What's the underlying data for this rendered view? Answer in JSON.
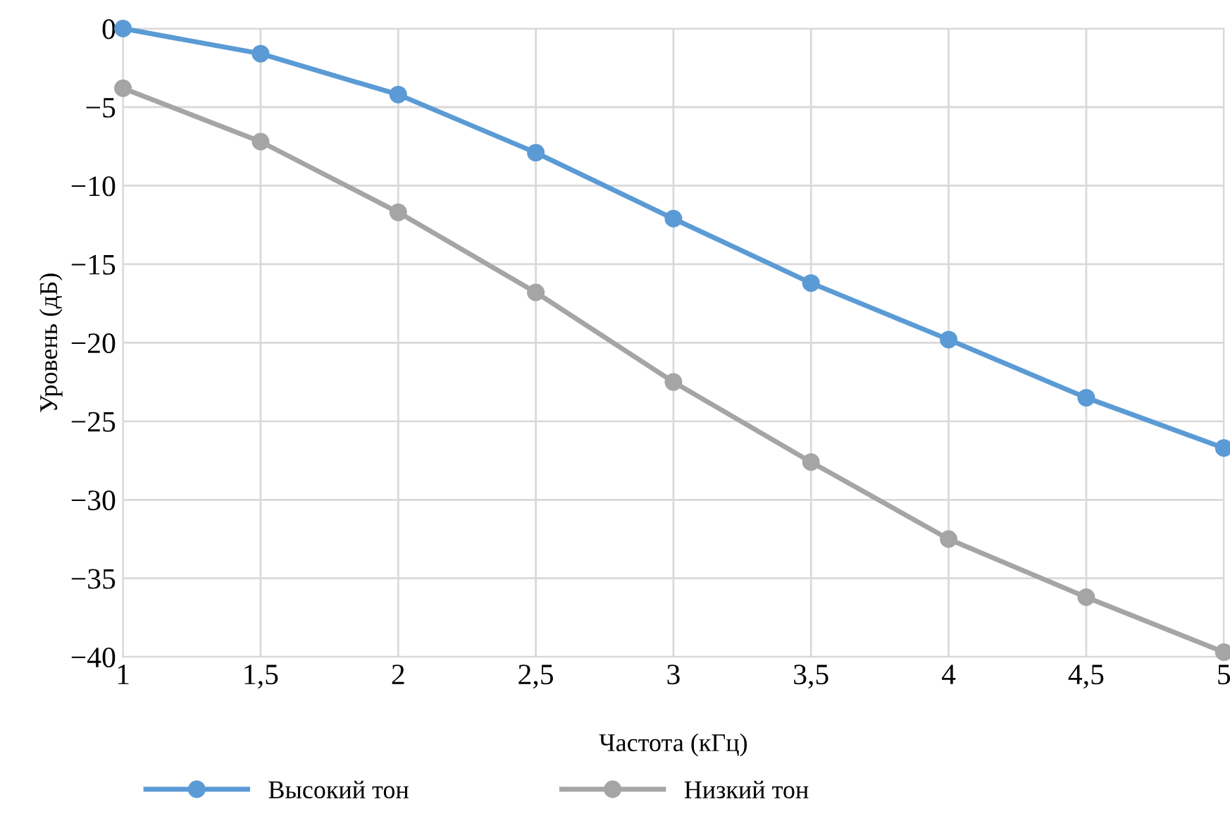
{
  "chart_data": {
    "type": "line",
    "xlabel": "Частота (кГц)",
    "ylabel": "Уровень (дБ)",
    "x": [
      1,
      1.5,
      2,
      2.5,
      3,
      3.5,
      4,
      4.5,
      5
    ],
    "series": [
      {
        "name": "Высокий тон",
        "color": "#5b9bd5",
        "values": [
          0,
          -1.6,
          -4.2,
          -7.9,
          -12.1,
          -16.2,
          -19.8,
          -23.5,
          -26.7
        ]
      },
      {
        "name": "Низкий тон",
        "color": "#a5a5a5",
        "values": [
          -3.8,
          -7.2,
          -11.7,
          -16.8,
          -22.5,
          -27.6,
          -32.5,
          -36.2,
          -39.7
        ]
      }
    ],
    "xlim": [
      1,
      5
    ],
    "ylim": [
      -40,
      0
    ],
    "xticks": [
      1,
      {
        "value": 1.5,
        "label": "1,5"
      },
      2,
      {
        "value": 2.5,
        "label": "2,5"
      },
      3,
      {
        "value": 3.5,
        "label": "3,5"
      },
      4,
      {
        "value": 4.5,
        "label": "4,5"
      },
      5
    ],
    "yticks": [
      {
        "value": 0,
        "label": "0"
      },
      {
        "value": -5,
        "label": "−5"
      },
      {
        "value": -10,
        "label": "−10"
      },
      {
        "value": -15,
        "label": "−15"
      },
      {
        "value": -20,
        "label": "−20"
      },
      {
        "value": -25,
        "label": "−25"
      },
      {
        "value": -30,
        "label": "−30"
      },
      {
        "value": -35,
        "label": "−35"
      },
      {
        "value": -40,
        "label": "−40"
      }
    ],
    "grid": true,
    "legend": "bottom",
    "marker": "circle",
    "line_style": "solid"
  }
}
